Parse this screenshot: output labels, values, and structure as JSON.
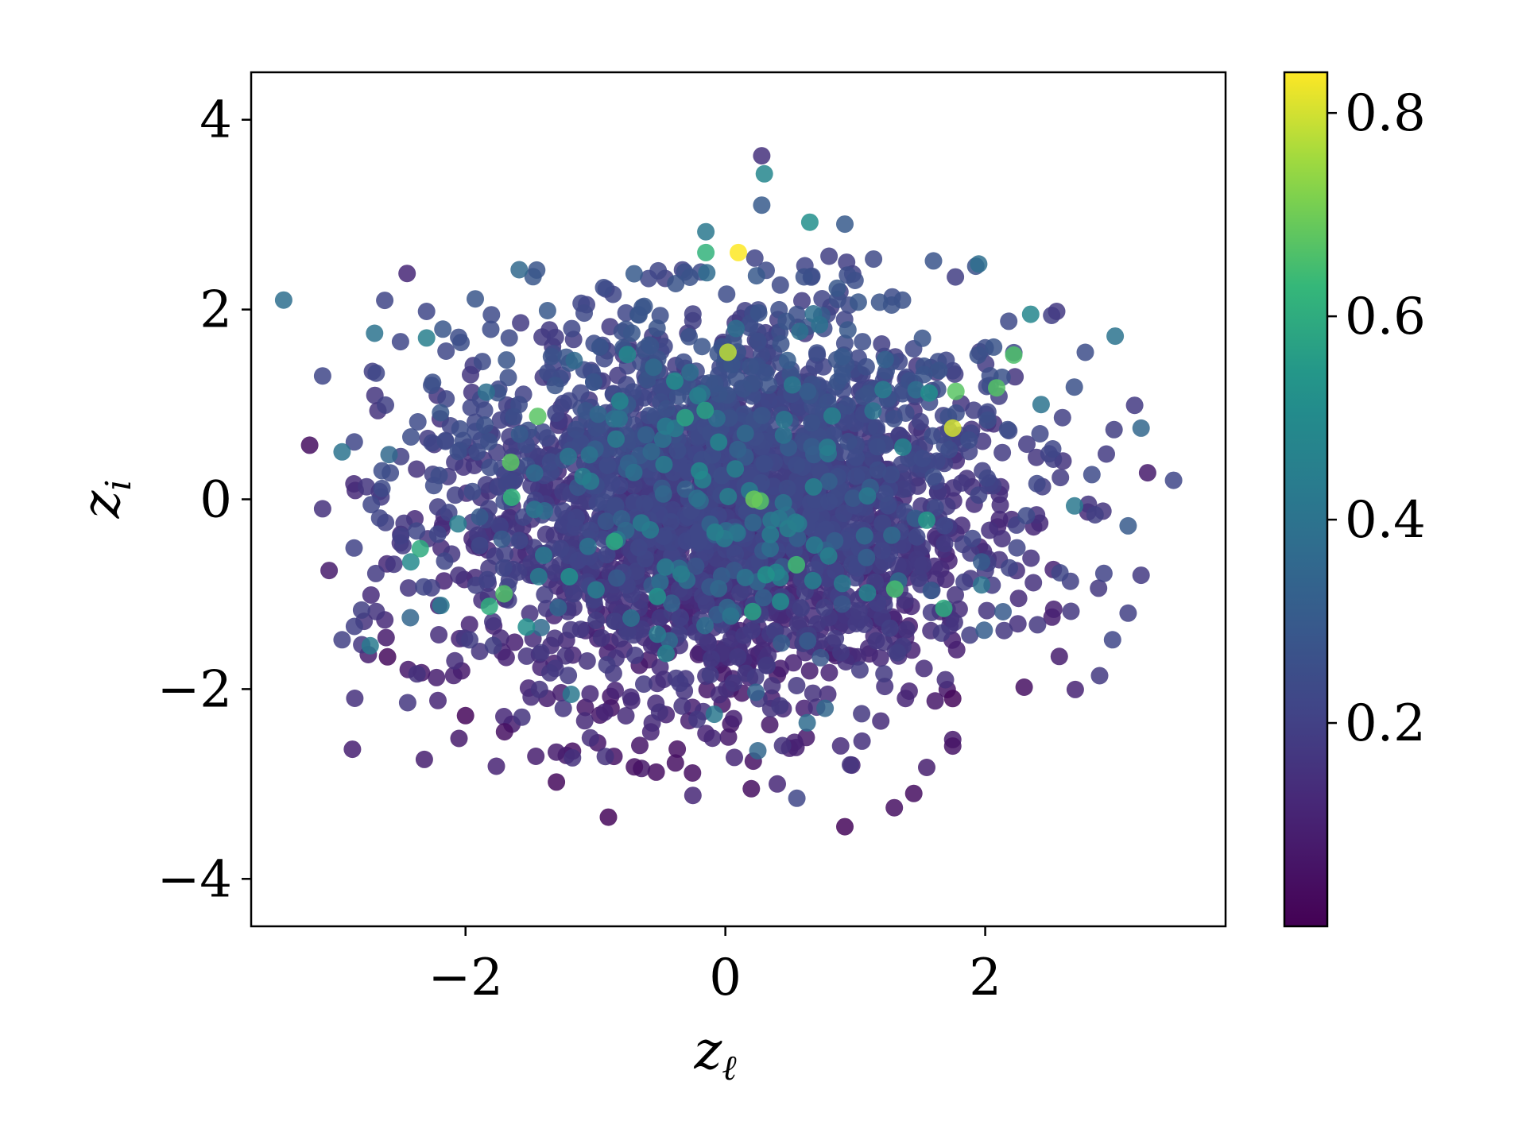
{
  "chart_data": {
    "type": "scatter",
    "title": "",
    "xlabel": {
      "base": "z",
      "sub": "ℓ"
    },
    "ylabel": {
      "base": "z",
      "sub": "i"
    },
    "xlim": [
      -3.65,
      3.85
    ],
    "ylim": [
      -4.5,
      4.5
    ],
    "xticks": [
      -2,
      0,
      2
    ],
    "yticks": [
      -4,
      -2,
      0,
      2,
      4
    ],
    "xtick_labels": [
      "−2",
      "0",
      "2"
    ],
    "ytick_labels": [
      "−4",
      "−2",
      "0",
      "2",
      "4"
    ],
    "colorbar": {
      "colormap": "viridis",
      "range": [
        0.0,
        0.84
      ],
      "ticks": [
        0.2,
        0.4,
        0.6,
        0.8
      ],
      "tick_labels": [
        "0.2",
        "0.4",
        "0.6",
        "0.8"
      ]
    },
    "point_alpha": 0.85,
    "grid": false,
    "legend": "none",
    "approx_point_count": 3000,
    "distribution": {
      "x_mean": 0.0,
      "x_std": 1.05,
      "y_mean": -0.05,
      "y_std": 1.0,
      "color_trend": "higher values toward upper region, mostly 0.0–0.35"
    },
    "notable_points": [
      {
        "x": -3.4,
        "y": 2.1,
        "c": 0.38
      },
      {
        "x": -3.1,
        "y": 1.3,
        "c": 0.22
      },
      {
        "x": -3.2,
        "y": 0.57,
        "c": 0.04
      },
      {
        "x": -2.95,
        "y": 0.5,
        "c": 0.4
      },
      {
        "x": -3.1,
        "y": -0.1,
        "c": 0.15
      },
      {
        "x": -3.05,
        "y": -0.75,
        "c": 0.08
      },
      {
        "x": -2.95,
        "y": -1.48,
        "c": 0.2
      },
      {
        "x": -2.6,
        "y": -1.66,
        "c": 0.03
      },
      {
        "x": -2.45,
        "y": 2.38,
        "c": 0.12
      },
      {
        "x": -2.7,
        "y": 1.75,
        "c": 0.4
      },
      {
        "x": -2.3,
        "y": 1.98,
        "c": 0.22
      },
      {
        "x": -2.3,
        "y": 1.7,
        "c": 0.45
      },
      {
        "x": -2.0,
        "y": -2.28,
        "c": 0.02
      },
      {
        "x": -2.05,
        "y": -2.52,
        "c": 0.08
      },
      {
        "x": -1.7,
        "y": -2.45,
        "c": 0.05
      },
      {
        "x": -1.3,
        "y": -2.98,
        "c": 0.03
      },
      {
        "x": -0.9,
        "y": -3.35,
        "c": 0.02
      },
      {
        "x": -0.7,
        "y": -2.82,
        "c": 0.05
      },
      {
        "x": -0.25,
        "y": -3.12,
        "c": 0.12
      },
      {
        "x": 0.2,
        "y": -3.05,
        "c": 0.04
      },
      {
        "x": 0.4,
        "y": -3.0,
        "c": 0.12
      },
      {
        "x": 0.55,
        "y": -3.15,
        "c": 0.22
      },
      {
        "x": 0.25,
        "y": -2.65,
        "c": 0.35
      },
      {
        "x": 0.92,
        "y": -3.45,
        "c": 0.02
      },
      {
        "x": 1.3,
        "y": -3.25,
        "c": 0.05
      },
      {
        "x": 1.45,
        "y": -3.1,
        "c": 0.04
      },
      {
        "x": 1.75,
        "y": -2.6,
        "c": 0.06
      },
      {
        "x": 0.28,
        "y": 3.62,
        "c": 0.15
      },
      {
        "x": 0.3,
        "y": 3.43,
        "c": 0.48
      },
      {
        "x": 0.28,
        "y": 3.1,
        "c": 0.3
      },
      {
        "x": 0.65,
        "y": 2.92,
        "c": 0.52
      },
      {
        "x": 0.92,
        "y": 2.9,
        "c": 0.3
      },
      {
        "x": 0.1,
        "y": 2.6,
        "c": 0.84
      },
      {
        "x": -0.15,
        "y": 2.6,
        "c": 0.62
      },
      {
        "x": -0.15,
        "y": 2.82,
        "c": 0.42
      },
      {
        "x": 0.02,
        "y": 1.55,
        "c": 0.78
      },
      {
        "x": 1.75,
        "y": 0.75,
        "c": 0.8
      },
      {
        "x": 2.22,
        "y": 1.52,
        "c": 0.66
      },
      {
        "x": 1.95,
        "y": 2.48,
        "c": 0.38
      },
      {
        "x": 2.35,
        "y": 1.95,
        "c": 0.48
      },
      {
        "x": 2.55,
        "y": 1.98,
        "c": 0.18
      },
      {
        "x": 3.0,
        "y": 1.72,
        "c": 0.4
      },
      {
        "x": 3.15,
        "y": 0.99,
        "c": 0.18
      },
      {
        "x": 3.2,
        "y": 0.75,
        "c": 0.35
      },
      {
        "x": 3.25,
        "y": 0.28,
        "c": 0.08
      },
      {
        "x": 3.45,
        "y": 0.2,
        "c": 0.22
      },
      {
        "x": 3.1,
        "y": -0.28,
        "c": 0.3
      },
      {
        "x": 3.2,
        "y": -0.8,
        "c": 0.18
      },
      {
        "x": 3.1,
        "y": -1.2,
        "c": 0.2
      },
      {
        "x": 2.98,
        "y": -1.48,
        "c": 0.22
      },
      {
        "x": 2.3,
        "y": -1.98,
        "c": 0.05
      },
      {
        "x": 1.75,
        "y": -2.1,
        "c": 0.02
      },
      {
        "x": 1.55,
        "y": -0.22,
        "c": 0.55
      },
      {
        "x": -0.2,
        "y": 0.3,
        "c": 0.5
      }
    ]
  }
}
